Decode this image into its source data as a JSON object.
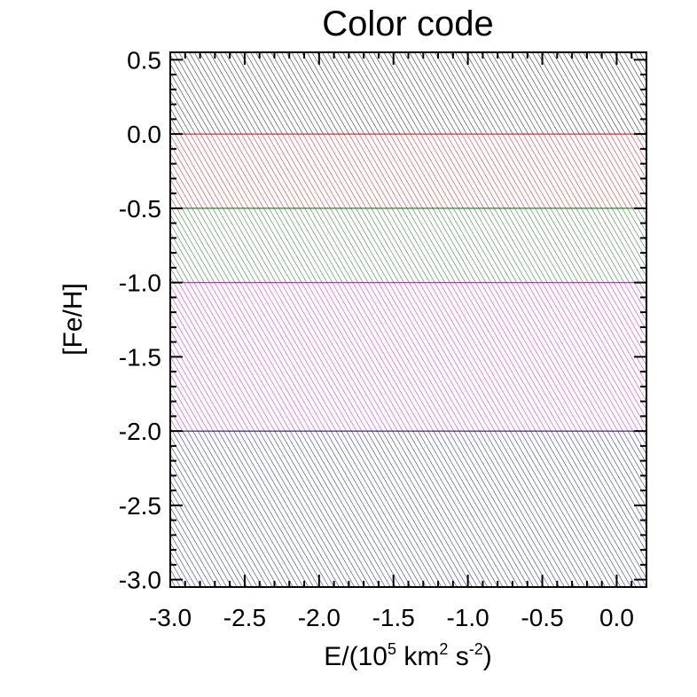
{
  "chart_data": {
    "type": "area",
    "title": "Color code",
    "xlabel": {
      "prefix": "E/(10",
      "sup1": "5",
      "mid": " km",
      "sup2": "2",
      "mid2": " s",
      "sup3": "-2",
      "suffix": ")"
    },
    "ylabel": "[Fe/H]",
    "xlim": [
      -3.0,
      0.2
    ],
    "ylim": [
      -3.05,
      0.55
    ],
    "x_ticks": [
      -3.0,
      -2.5,
      -2.0,
      -1.5,
      -1.0,
      -0.5,
      0.0
    ],
    "x_tick_labels": [
      "-3.0",
      "-2.5",
      "-2.0",
      "-1.5",
      "-1.0",
      "-0.5",
      "0.0"
    ],
    "y_ticks": [
      0.5,
      0.0,
      -0.5,
      -1.0,
      -1.5,
      -2.0,
      -2.5,
      -3.0
    ],
    "y_tick_labels": [
      "0.5",
      "0.0",
      "-0.5",
      "-1.0",
      "-1.5",
      "-2.0",
      "-2.5",
      "-3.0"
    ],
    "bands": [
      {
        "ymin": 0.0,
        "ymax": 0.55,
        "color": "#000000"
      },
      {
        "ymin": -0.5,
        "ymax": 0.0,
        "color": "#cc0000"
      },
      {
        "ymin": -1.0,
        "ymax": -0.5,
        "color": "#006600"
      },
      {
        "ymin": -2.0,
        "ymax": -1.0,
        "color": "#cc00cc"
      },
      {
        "ymin": -3.05,
        "ymax": -2.0,
        "color": "#000080"
      }
    ],
    "grid": false,
    "hatch": "diagonal"
  }
}
